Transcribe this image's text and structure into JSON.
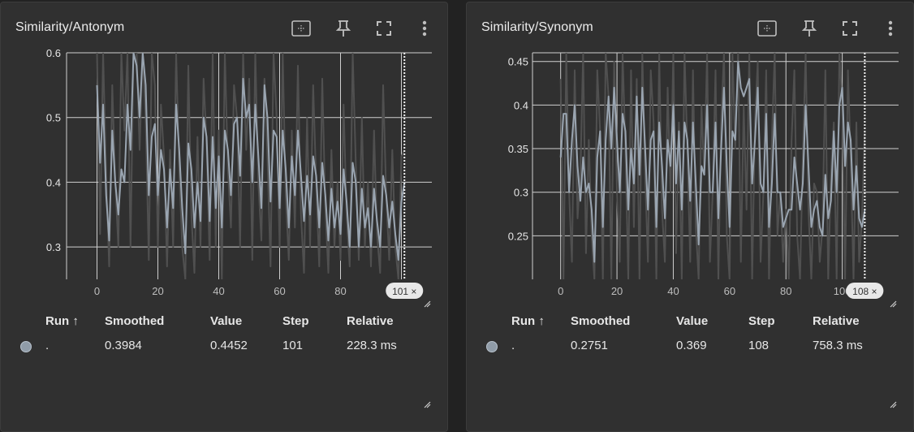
{
  "colors": {
    "background": "#222222",
    "card": "#303030",
    "grid": "#cfcfcf",
    "raw_line": "#505050",
    "smoothed_line": "#9aa5b1",
    "text": "#e6e6e6"
  },
  "icons": [
    "fit-to-data-icon",
    "pin-icon",
    "fullscreen-icon",
    "more-vert-icon",
    "resize-handle-icon"
  ],
  "table_headers": {
    "run": "Run ↑",
    "smoothed": "Smoothed",
    "value": "Value",
    "step": "Step",
    "relative": "Relative"
  },
  "cards": [
    {
      "title": "Similarity/Antonym",
      "step_badge": "101 ×",
      "row": {
        "run": ".",
        "smoothed": "0.3984",
        "value": "0.4452",
        "step": "101",
        "relative": "228.3 ms"
      }
    },
    {
      "title": "Similarity/Synonym",
      "step_badge": "108 ×",
      "row": {
        "run": ".",
        "smoothed": "0.2751",
        "value": "0.369",
        "step": "108",
        "relative": "758.3 ms"
      }
    }
  ],
  "chart_data": [
    {
      "type": "line",
      "title": "Similarity/Antonym",
      "xlabel": "",
      "ylabel": "",
      "xlim": [
        -10,
        110
      ],
      "ylim": [
        0.25,
        0.6
      ],
      "xticks": [
        "0",
        "20",
        "40",
        "60",
        "80",
        "100"
      ],
      "yticks": [
        "0.6",
        "0.5",
        "0.4",
        "0.3"
      ],
      "grid": true,
      "cursor_step": 101,
      "series": [
        {
          "style": "raw",
          "x": [
            0,
            1,
            2,
            3,
            4,
            5,
            6,
            7,
            8,
            9,
            10,
            11,
            12,
            13,
            14,
            15,
            16,
            17,
            18,
            19,
            20,
            21,
            22,
            23,
            24,
            25,
            26,
            27,
            28,
            29,
            30,
            31,
            32,
            33,
            34,
            35,
            36,
            37,
            38,
            39,
            40,
            41,
            42,
            43,
            44,
            45,
            46,
            47,
            48,
            49,
            50,
            51,
            52,
            53,
            54,
            55,
            56,
            57,
            58,
            59,
            60,
            61,
            62,
            63,
            64,
            65,
            66,
            67,
            68,
            69,
            70,
            71,
            72,
            73,
            74,
            75,
            76,
            77,
            78,
            79,
            80,
            81,
            82,
            83,
            84,
            85,
            86,
            87,
            88,
            89,
            90,
            91,
            92,
            93,
            94,
            95,
            96,
            97,
            98,
            99,
            100,
            101
          ],
          "values": [
            0.6,
            0.32,
            0.6,
            0.41,
            0.27,
            0.55,
            0.4,
            0.3,
            0.6,
            0.48,
            0.6,
            0.3,
            0.6,
            0.6,
            0.45,
            0.6,
            0.5,
            0.28,
            0.6,
            0.55,
            0.3,
            0.52,
            0.44,
            0.27,
            0.45,
            0.3,
            0.6,
            0.42,
            0.3,
            0.25,
            0.58,
            0.35,
            0.26,
            0.47,
            0.3,
            0.56,
            0.46,
            0.28,
            0.6,
            0.3,
            0.48,
            0.25,
            0.6,
            0.42,
            0.33,
            0.55,
            0.5,
            0.3,
            0.6,
            0.45,
            0.56,
            0.28,
            0.6,
            0.4,
            0.31,
            0.56,
            0.44,
            0.27,
            0.6,
            0.5,
            0.3,
            0.6,
            0.38,
            0.28,
            0.48,
            0.33,
            0.58,
            0.35,
            0.26,
            0.5,
            0.3,
            0.55,
            0.4,
            0.27,
            0.56,
            0.36,
            0.26,
            0.45,
            0.3,
            0.4,
            0.28,
            0.52,
            0.35,
            0.27,
            0.6,
            0.43,
            0.28,
            0.5,
            0.3,
            0.4,
            0.27,
            0.48,
            0.32,
            0.26,
            0.55,
            0.38,
            0.28,
            0.45,
            0.3,
            0.25,
            0.44,
            0.45
          ]
        },
        {
          "style": "smoothed",
          "x": [
            0,
            1,
            2,
            3,
            4,
            5,
            6,
            7,
            8,
            9,
            10,
            11,
            12,
            13,
            14,
            15,
            16,
            17,
            18,
            19,
            20,
            21,
            22,
            23,
            24,
            25,
            26,
            27,
            28,
            29,
            30,
            31,
            32,
            33,
            34,
            35,
            36,
            37,
            38,
            39,
            40,
            41,
            42,
            43,
            44,
            45,
            46,
            47,
            48,
            49,
            50,
            51,
            52,
            53,
            54,
            55,
            56,
            57,
            58,
            59,
            60,
            61,
            62,
            63,
            64,
            65,
            66,
            67,
            68,
            69,
            70,
            71,
            72,
            73,
            74,
            75,
            76,
            77,
            78,
            79,
            80,
            81,
            82,
            83,
            84,
            85,
            86,
            87,
            88,
            89,
            90,
            91,
            92,
            93,
            94,
            95,
            96,
            97,
            98,
            99,
            100,
            101
          ],
          "values": [
            0.55,
            0.43,
            0.52,
            0.38,
            0.31,
            0.48,
            0.4,
            0.35,
            0.42,
            0.4,
            0.52,
            0.45,
            0.6,
            0.58,
            0.5,
            0.6,
            0.55,
            0.38,
            0.47,
            0.49,
            0.38,
            0.45,
            0.42,
            0.33,
            0.42,
            0.36,
            0.52,
            0.45,
            0.36,
            0.29,
            0.46,
            0.42,
            0.33,
            0.4,
            0.34,
            0.5,
            0.47,
            0.34,
            0.47,
            0.36,
            0.44,
            0.33,
            0.48,
            0.45,
            0.38,
            0.49,
            0.5,
            0.41,
            0.56,
            0.5,
            0.52,
            0.4,
            0.52,
            0.44,
            0.36,
            0.55,
            0.5,
            0.37,
            0.48,
            0.47,
            0.36,
            0.48,
            0.42,
            0.33,
            0.44,
            0.38,
            0.48,
            0.41,
            0.34,
            0.41,
            0.35,
            0.44,
            0.41,
            0.33,
            0.43,
            0.38,
            0.31,
            0.39,
            0.33,
            0.37,
            0.32,
            0.42,
            0.37,
            0.3,
            0.43,
            0.4,
            0.3,
            0.39,
            0.33,
            0.36,
            0.3,
            0.39,
            0.34,
            0.3,
            0.41,
            0.38,
            0.33,
            0.37,
            0.32,
            0.28,
            0.37,
            0.4
          ]
        }
      ]
    },
    {
      "type": "line",
      "title": "Similarity/Synonym",
      "xlabel": "",
      "ylabel": "",
      "xlim": [
        -10,
        120
      ],
      "ylim": [
        0.2,
        0.46
      ],
      "xticks": [
        "0",
        "20",
        "40",
        "60",
        "80",
        "100"
      ],
      "yticks": [
        "0.45",
        "0.4",
        "0.35",
        "0.3",
        "0.25"
      ],
      "grid": true,
      "cursor_step": 108,
      "series": [
        {
          "style": "raw",
          "x": [
            0,
            1,
            2,
            3,
            4,
            5,
            6,
            7,
            8,
            9,
            10,
            11,
            12,
            13,
            14,
            15,
            16,
            17,
            18,
            19,
            20,
            21,
            22,
            23,
            24,
            25,
            26,
            27,
            28,
            29,
            30,
            31,
            32,
            33,
            34,
            35,
            36,
            37,
            38,
            39,
            40,
            41,
            42,
            43,
            44,
            45,
            46,
            47,
            48,
            49,
            50,
            51,
            52,
            53,
            54,
            55,
            56,
            57,
            58,
            59,
            60,
            61,
            62,
            63,
            64,
            65,
            66,
            67,
            68,
            69,
            70,
            71,
            72,
            73,
            74,
            75,
            76,
            77,
            78,
            79,
            80,
            81,
            82,
            83,
            84,
            85,
            86,
            87,
            88,
            89,
            90,
            91,
            92,
            93,
            94,
            95,
            96,
            97,
            98,
            99,
            100,
            101,
            102,
            103,
            104,
            105,
            106,
            107,
            108
          ],
          "values": [
            0.43,
            0.2,
            0.46,
            0.3,
            0.22,
            0.44,
            0.27,
            0.32,
            0.46,
            0.23,
            0.36,
            0.25,
            0.2,
            0.44,
            0.37,
            0.2,
            0.46,
            0.41,
            0.2,
            0.45,
            0.3,
            0.22,
            0.46,
            0.35,
            0.2,
            0.44,
            0.26,
            0.43,
            0.2,
            0.46,
            0.32,
            0.22,
            0.44,
            0.38,
            0.2,
            0.46,
            0.28,
            0.22,
            0.42,
            0.3,
            0.46,
            0.23,
            0.38,
            0.2,
            0.46,
            0.35,
            0.22,
            0.44,
            0.26,
            0.2,
            0.4,
            0.32,
            0.46,
            0.22,
            0.3,
            0.44,
            0.2,
            0.38,
            0.46,
            0.25,
            0.2,
            0.46,
            0.35,
            0.46,
            0.22,
            0.4,
            0.28,
            0.46,
            0.2,
            0.38,
            0.45,
            0.22,
            0.3,
            0.44,
            0.2,
            0.36,
            0.46,
            0.25,
            0.3,
            0.22,
            0.28,
            0.2,
            0.36,
            0.44,
            0.25,
            0.2,
            0.34,
            0.46,
            0.28,
            0.2,
            0.31,
            0.3,
            0.22,
            0.26,
            0.44,
            0.2,
            0.32,
            0.38,
            0.2,
            0.46,
            0.4,
            0.2,
            0.44,
            0.34,
            0.2,
            0.38,
            0.22,
            0.27,
            0.37
          ]
        },
        {
          "style": "smoothed",
          "x": [
            0,
            1,
            2,
            3,
            4,
            5,
            6,
            7,
            8,
            9,
            10,
            11,
            12,
            13,
            14,
            15,
            16,
            17,
            18,
            19,
            20,
            21,
            22,
            23,
            24,
            25,
            26,
            27,
            28,
            29,
            30,
            31,
            32,
            33,
            34,
            35,
            36,
            37,
            38,
            39,
            40,
            41,
            42,
            43,
            44,
            45,
            46,
            47,
            48,
            49,
            50,
            51,
            52,
            53,
            54,
            55,
            56,
            57,
            58,
            59,
            60,
            61,
            62,
            63,
            64,
            65,
            66,
            67,
            68,
            69,
            70,
            71,
            72,
            73,
            74,
            75,
            76,
            77,
            78,
            79,
            80,
            81,
            82,
            83,
            84,
            85,
            86,
            87,
            88,
            89,
            90,
            91,
            92,
            93,
            94,
            95,
            96,
            97,
            98,
            99,
            100,
            101,
            102,
            103,
            104,
            105,
            106,
            107,
            108
          ],
          "values": [
            0.34,
            0.39,
            0.39,
            0.3,
            0.36,
            0.4,
            0.33,
            0.29,
            0.34,
            0.3,
            0.31,
            0.28,
            0.22,
            0.34,
            0.37,
            0.26,
            0.36,
            0.41,
            0.35,
            0.42,
            0.36,
            0.3,
            0.39,
            0.37,
            0.28,
            0.35,
            0.31,
            0.41,
            0.32,
            0.42,
            0.35,
            0.28,
            0.36,
            0.37,
            0.26,
            0.38,
            0.33,
            0.27,
            0.36,
            0.33,
            0.4,
            0.31,
            0.37,
            0.28,
            0.38,
            0.36,
            0.29,
            0.38,
            0.31,
            0.24,
            0.33,
            0.32,
            0.4,
            0.3,
            0.3,
            0.38,
            0.27,
            0.35,
            0.42,
            0.33,
            0.26,
            0.37,
            0.36,
            0.45,
            0.42,
            0.41,
            0.42,
            0.43,
            0.31,
            0.36,
            0.42,
            0.31,
            0.3,
            0.39,
            0.26,
            0.31,
            0.39,
            0.3,
            0.3,
            0.26,
            0.27,
            0.28,
            0.28,
            0.34,
            0.31,
            0.28,
            0.31,
            0.4,
            0.33,
            0.26,
            0.28,
            0.29,
            0.26,
            0.25,
            0.32,
            0.27,
            0.29,
            0.37,
            0.3,
            0.4,
            0.42,
            0.33,
            0.38,
            0.36,
            0.28,
            0.33,
            0.27,
            0.26,
            0.28
          ]
        }
      ]
    }
  ]
}
